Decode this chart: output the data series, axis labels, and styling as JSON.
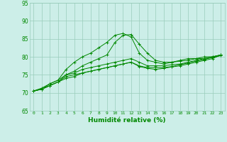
{
  "xlabel": "Humidité relative (%)",
  "xlim": [
    -0.5,
    23.5
  ],
  "ylim": [
    65,
    95
  ],
  "yticks": [
    65,
    70,
    75,
    80,
    85,
    90,
    95
  ],
  "xticks": [
    0,
    1,
    2,
    3,
    4,
    5,
    6,
    7,
    8,
    9,
    10,
    11,
    12,
    13,
    14,
    15,
    16,
    17,
    18,
    19,
    20,
    21,
    22,
    23
  ],
  "background_color": "#cceee8",
  "grid_color": "#99ccbb",
  "line_color": "#008800",
  "line1": [
    70.5,
    71.3,
    72.5,
    73.5,
    76.5,
    78.5,
    80.0,
    81.0,
    82.5,
    84.0,
    86.0,
    86.5,
    85.5,
    81.0,
    79.0,
    78.5,
    78.0,
    78.5,
    79.0,
    79.5,
    79.5,
    80.0,
    80.0,
    80.5
  ],
  "line2": [
    70.5,
    71.0,
    72.0,
    73.0,
    75.0,
    76.0,
    77.5,
    78.5,
    79.5,
    80.5,
    84.0,
    86.0,
    86.2,
    83.5,
    81.0,
    79.0,
    78.5,
    78.5,
    78.8,
    79.0,
    79.5,
    79.5,
    80.0,
    80.5
  ],
  "line3": [
    70.5,
    71.0,
    72.5,
    73.5,
    75.0,
    75.5,
    76.5,
    77.0,
    77.5,
    78.0,
    78.5,
    79.0,
    79.5,
    78.5,
    77.5,
    77.5,
    77.5,
    77.8,
    78.0,
    78.5,
    79.0,
    79.5,
    80.0,
    80.5
  ],
  "line4": [
    70.5,
    71.0,
    72.0,
    73.0,
    74.0,
    74.5,
    75.5,
    76.0,
    76.5,
    77.0,
    77.5,
    78.0,
    78.5,
    77.5,
    77.0,
    77.0,
    77.0,
    77.3,
    77.8,
    78.3,
    78.8,
    79.3,
    79.8,
    80.3
  ],
  "line5": [
    70.5,
    71.0,
    72.0,
    73.0,
    74.5,
    75.0,
    75.5,
    76.0,
    76.5,
    77.0,
    77.5,
    78.0,
    78.5,
    77.3,
    76.8,
    76.5,
    76.8,
    77.2,
    77.5,
    78.0,
    78.5,
    79.0,
    79.5,
    80.5
  ]
}
